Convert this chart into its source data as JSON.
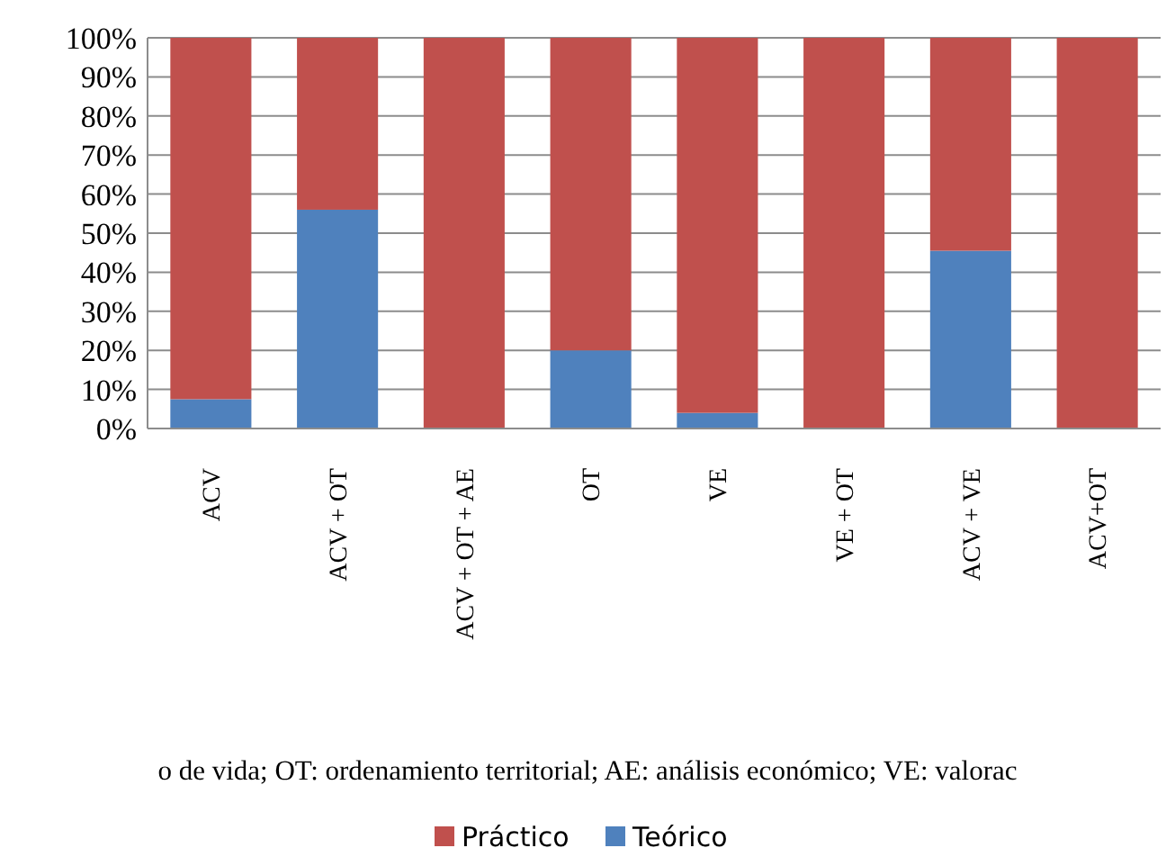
{
  "chart_data": {
    "type": "bar",
    "stacked": true,
    "categories": [
      "ACV",
      "ACV + OT",
      "ACV + OT + AE",
      "OT",
      "VE",
      "VE + OT",
      "ACV + VE",
      "ACV+OT"
    ],
    "series": [
      {
        "name": "Teórico",
        "color": "#4f81bd",
        "values": [
          7.5,
          56,
          0,
          20,
          4,
          0,
          45.5,
          0
        ]
      },
      {
        "name": "Práctico",
        "color": "#c0504d",
        "values": [
          92.5,
          44,
          100,
          80,
          96,
          100,
          54.5,
          100
        ]
      }
    ],
    "ylim": [
      0,
      100
    ],
    "yticks": [
      {
        "value": 0,
        "label": "0%"
      },
      {
        "value": 10,
        "label": "10%"
      },
      {
        "value": 20,
        "label": "20%"
      },
      {
        "value": 30,
        "label": "30%"
      },
      {
        "value": 40,
        "label": "40%"
      },
      {
        "value": 50,
        "label": "50%"
      },
      {
        "value": 60,
        "label": "60%"
      },
      {
        "value": 70,
        "label": "70%"
      },
      {
        "value": 80,
        "label": "80%"
      },
      {
        "value": 90,
        "label": "90%"
      },
      {
        "value": 100,
        "label": "100%"
      }
    ],
    "grid": "y",
    "legend": "bottom",
    "annotations": [
      "o de vida; OT: ordenamiento territorial; AE: análisis económico; VE: valorac"
    ]
  }
}
